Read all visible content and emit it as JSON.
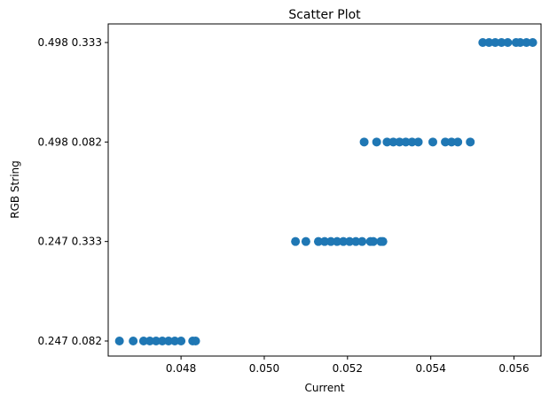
{
  "chart_data": {
    "type": "scatter",
    "title": "Scatter Plot",
    "xlabel": "Current",
    "ylabel": "RGB String",
    "xlim": [
      0.04625,
      0.05665
    ],
    "x_ticks": [
      {
        "value": 0.048,
        "label": "0.048"
      },
      {
        "value": 0.05,
        "label": "0.050"
      },
      {
        "value": 0.052,
        "label": "0.052"
      },
      {
        "value": 0.054,
        "label": "0.054"
      },
      {
        "value": 0.056,
        "label": "0.056"
      }
    ],
    "categories": [
      "0.247 0.082",
      "0.247 0.333",
      "0.498 0.082",
      "0.498 0.333"
    ],
    "grid": false,
    "marker_color": "#1f77b4",
    "points": [
      {
        "x": 0.04652,
        "y": "0.247 0.082"
      },
      {
        "x": 0.04685,
        "y": "0.247 0.082"
      },
      {
        "x": 0.0471,
        "y": "0.247 0.082"
      },
      {
        "x": 0.04725,
        "y": "0.247 0.082"
      },
      {
        "x": 0.0474,
        "y": "0.247 0.082"
      },
      {
        "x": 0.04755,
        "y": "0.247 0.082"
      },
      {
        "x": 0.0477,
        "y": "0.247 0.082"
      },
      {
        "x": 0.04785,
        "y": "0.247 0.082"
      },
      {
        "x": 0.048,
        "y": "0.247 0.082"
      },
      {
        "x": 0.04828,
        "y": "0.247 0.082"
      },
      {
        "x": 0.04835,
        "y": "0.247 0.082"
      },
      {
        "x": 0.05075,
        "y": "0.247 0.333"
      },
      {
        "x": 0.051,
        "y": "0.247 0.333"
      },
      {
        "x": 0.0513,
        "y": "0.247 0.333"
      },
      {
        "x": 0.05145,
        "y": "0.247 0.333"
      },
      {
        "x": 0.0516,
        "y": "0.247 0.333"
      },
      {
        "x": 0.05175,
        "y": "0.247 0.333"
      },
      {
        "x": 0.0519,
        "y": "0.247 0.333"
      },
      {
        "x": 0.05205,
        "y": "0.247 0.333"
      },
      {
        "x": 0.0522,
        "y": "0.247 0.333"
      },
      {
        "x": 0.05235,
        "y": "0.247 0.333"
      },
      {
        "x": 0.05255,
        "y": "0.247 0.333"
      },
      {
        "x": 0.05262,
        "y": "0.247 0.333"
      },
      {
        "x": 0.0528,
        "y": "0.247 0.333"
      },
      {
        "x": 0.05285,
        "y": "0.247 0.333"
      },
      {
        "x": 0.0524,
        "y": "0.498 0.082"
      },
      {
        "x": 0.0527,
        "y": "0.498 0.082"
      },
      {
        "x": 0.05295,
        "y": "0.498 0.082"
      },
      {
        "x": 0.0531,
        "y": "0.498 0.082"
      },
      {
        "x": 0.05325,
        "y": "0.498 0.082"
      },
      {
        "x": 0.0534,
        "y": "0.498 0.082"
      },
      {
        "x": 0.05355,
        "y": "0.498 0.082"
      },
      {
        "x": 0.0537,
        "y": "0.498 0.082"
      },
      {
        "x": 0.05405,
        "y": "0.498 0.082"
      },
      {
        "x": 0.05435,
        "y": "0.498 0.082"
      },
      {
        "x": 0.0545,
        "y": "0.498 0.082"
      },
      {
        "x": 0.05465,
        "y": "0.498 0.082"
      },
      {
        "x": 0.05495,
        "y": "0.498 0.082"
      },
      {
        "x": 0.05525,
        "y": "0.498 0.333"
      },
      {
        "x": 0.0554,
        "y": "0.498 0.333"
      },
      {
        "x": 0.05555,
        "y": "0.498 0.333"
      },
      {
        "x": 0.0557,
        "y": "0.498 0.333"
      },
      {
        "x": 0.05585,
        "y": "0.498 0.333"
      },
      {
        "x": 0.05605,
        "y": "0.498 0.333"
      },
      {
        "x": 0.05615,
        "y": "0.498 0.333"
      },
      {
        "x": 0.0563,
        "y": "0.498 0.333"
      },
      {
        "x": 0.05645,
        "y": "0.498 0.333"
      }
    ]
  }
}
